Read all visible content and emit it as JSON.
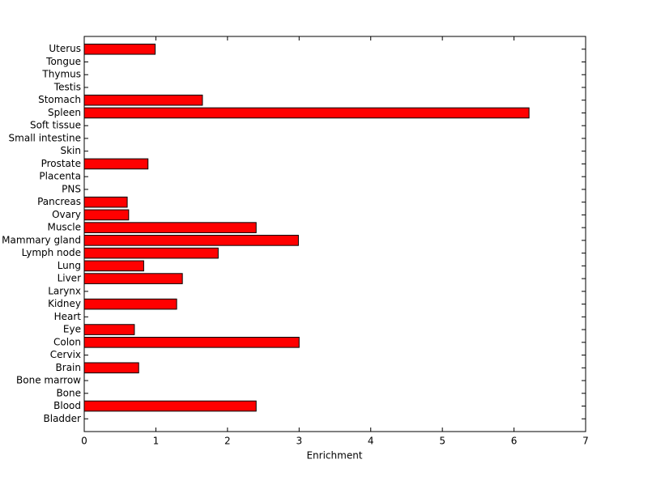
{
  "chart_data": {
    "type": "barh",
    "x_label": "Enrichment",
    "categories": [
      "Bladder",
      "Blood",
      "Bone",
      "Bone marrow",
      "Brain",
      "Cervix",
      "Colon",
      "Eye",
      "Heart",
      "Kidney",
      "Larynx",
      "Liver",
      "Lung",
      "Lymph node",
      "Mammary gland",
      "Muscle",
      "Ovary",
      "Pancreas",
      "PNS",
      "Placenta",
      "Prostate",
      "Skin",
      "Small intestine",
      "Soft tissue",
      "Spleen",
      "Stomach",
      "Testis",
      "Thymus",
      "Tongue",
      "Uterus"
    ],
    "values": [
      0,
      2.4,
      0,
      0,
      0.76,
      0,
      3.0,
      0.7,
      0,
      1.29,
      0,
      1.37,
      0.83,
      1.87,
      2.99,
      2.4,
      0.62,
      0.6,
      0,
      0,
      0.89,
      0,
      0,
      0,
      6.21,
      1.65,
      0,
      0,
      0,
      0.99
    ],
    "color": "#ff0000",
    "xlim": [
      0,
      7
    ],
    "xticks": [
      0,
      1,
      2,
      3,
      4,
      5,
      6,
      7
    ]
  }
}
